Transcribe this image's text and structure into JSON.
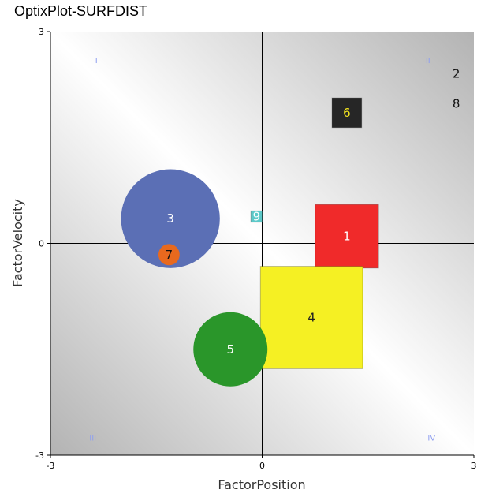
{
  "window": {
    "title": "OptixPlot-SURFDIST"
  },
  "chart_data": {
    "type": "scatter",
    "title": "",
    "xlabel": "FactorPosition",
    "ylabel": "FactorVelocity",
    "xlim": [
      -3,
      3
    ],
    "ylim": [
      -3,
      3
    ],
    "x_ticks": [
      "-3",
      "0",
      "3"
    ],
    "y_ticks": [
      "3",
      "0",
      "-3"
    ],
    "grid": false,
    "background": "diagonal gray gradient",
    "quadrant_labels": [
      "I",
      "II",
      "III",
      "IV"
    ],
    "points": [
      {
        "label": "1",
        "x": 1.2,
        "y": 0.1,
        "shape": "square",
        "size": 0.9,
        "color": "#f02a2a",
        "label_color": "#ffffff"
      },
      {
        "label": "2",
        "x": 2.75,
        "y": 2.4,
        "shape": "square",
        "size": 0.0,
        "color": "#111111",
        "label_color": "#111111"
      },
      {
        "label": "3",
        "x": -1.3,
        "y": 0.35,
        "shape": "circle",
        "size": 1.4,
        "color": "#5b6fb5",
        "label_color": "#ffffff"
      },
      {
        "label": "4",
        "x": 0.7,
        "y": -1.05,
        "shape": "square",
        "size": 1.45,
        "color": "#f5f023",
        "label_color": "#222222"
      },
      {
        "label": "5",
        "x": -0.45,
        "y": -1.5,
        "shape": "circle",
        "size": 1.05,
        "color": "#2a962a",
        "label_color": "#ffffff"
      },
      {
        "label": "6",
        "x": 1.2,
        "y": 1.85,
        "shape": "square",
        "size": 0.42,
        "color": "#262626",
        "label_color": "#f5e620"
      },
      {
        "label": "7",
        "x": -1.32,
        "y": -0.16,
        "shape": "circle",
        "size": 0.3,
        "color": "#e8691e",
        "label_color": "#111111"
      },
      {
        "label": "8",
        "x": 2.75,
        "y": 1.98,
        "shape": "square",
        "size": 0.0,
        "color": "#e05a5a",
        "label_color": "#111111"
      },
      {
        "label": "9",
        "x": -0.08,
        "y": 0.38,
        "shape": "square",
        "size": 0.16,
        "color": "#5cc9c9",
        "label_color": "#ffffff"
      }
    ]
  }
}
